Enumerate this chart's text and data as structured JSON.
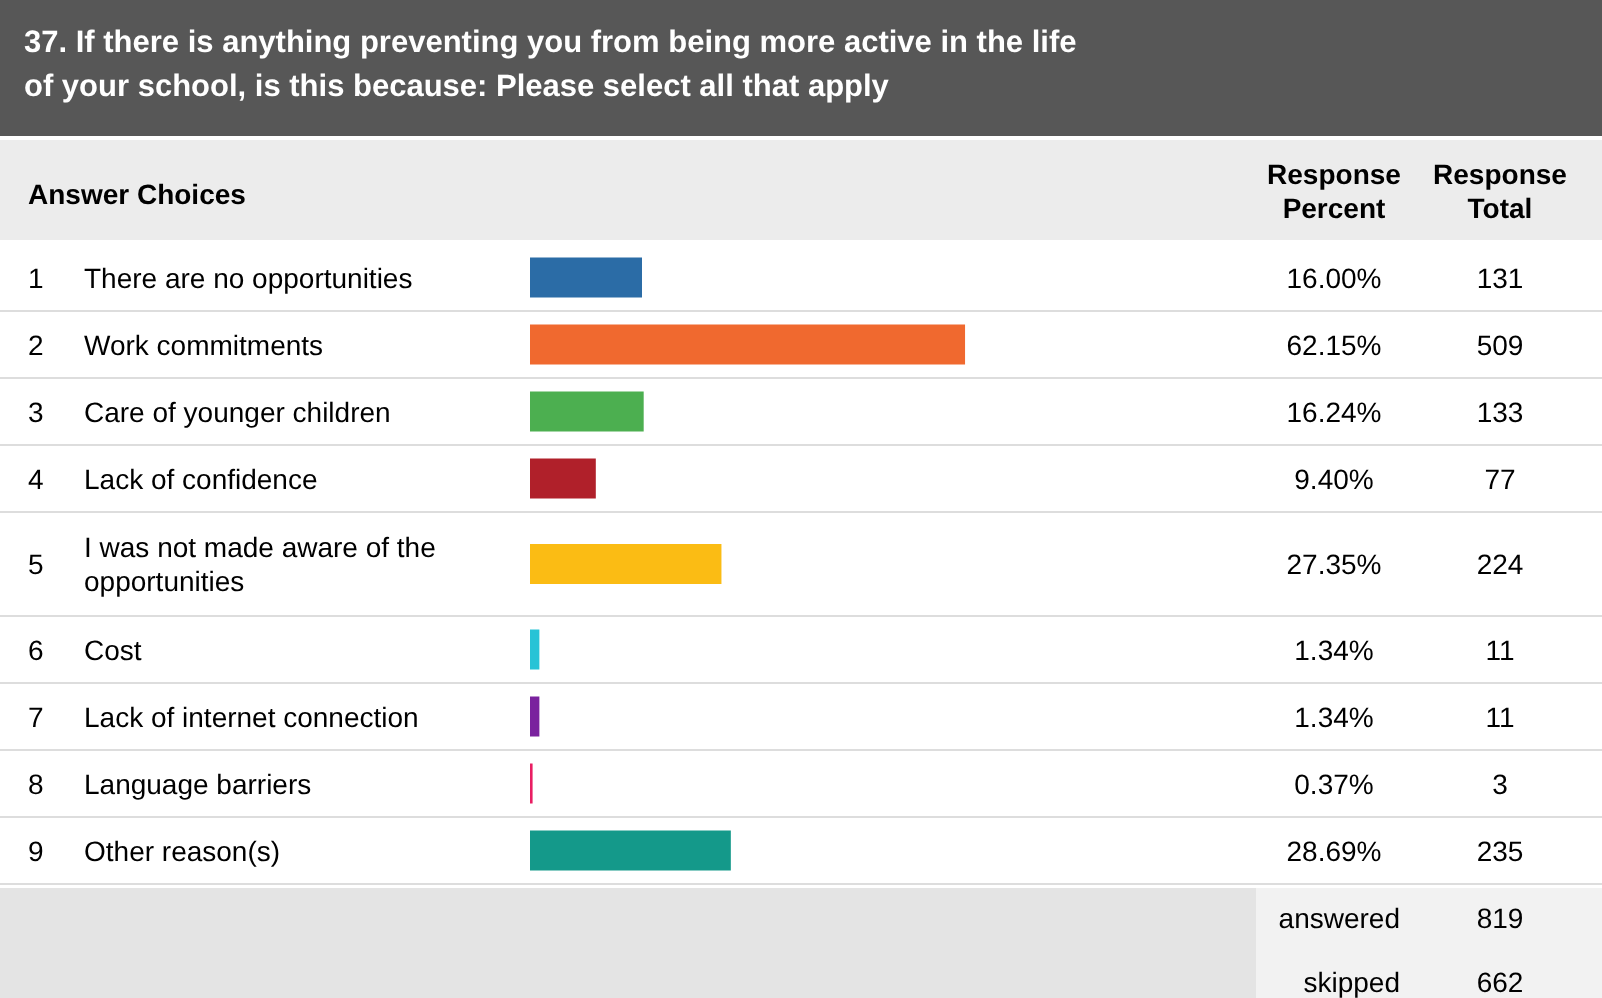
{
  "chart_data": {
    "type": "bar",
    "orientation": "horizontal",
    "title": "37. If there is anything preventing you from being more active in the life of your school, is this because: Please select all that apply",
    "categories": [
      "There are no opportunities",
      "Work commitments",
      "Care of younger children",
      "Lack of confidence",
      "I was not made aware of the opportunities",
      "Cost",
      "Lack of internet connection",
      "Language barriers",
      "Other reason(s)"
    ],
    "values": [
      16.0,
      62.15,
      16.24,
      9.4,
      27.35,
      1.34,
      1.34,
      0.37,
      28.69
    ],
    "value_labels": [
      "16.00%",
      "62.15%",
      "16.24%",
      "9.40%",
      "27.35%",
      "1.34%",
      "1.34%",
      "0.37%",
      "28.69%"
    ],
    "colors": [
      "#2b6ca6",
      "#f0692f",
      "#4caf50",
      "#b0202a",
      "#fbbc14",
      "#27c3d6",
      "#7a229e",
      "#e91e63",
      "#14998a"
    ],
    "annotations": [
      "Answer Choices",
      "Response Percent",
      "Response Total",
      "1",
      "2",
      "3",
      "4",
      "5",
      "6",
      "7",
      "8",
      "9",
      "131",
      "509",
      "133",
      "77",
      "224",
      "11",
      "11",
      "3",
      "235",
      "answered",
      "819",
      "skipped",
      "662"
    ]
  }
}
